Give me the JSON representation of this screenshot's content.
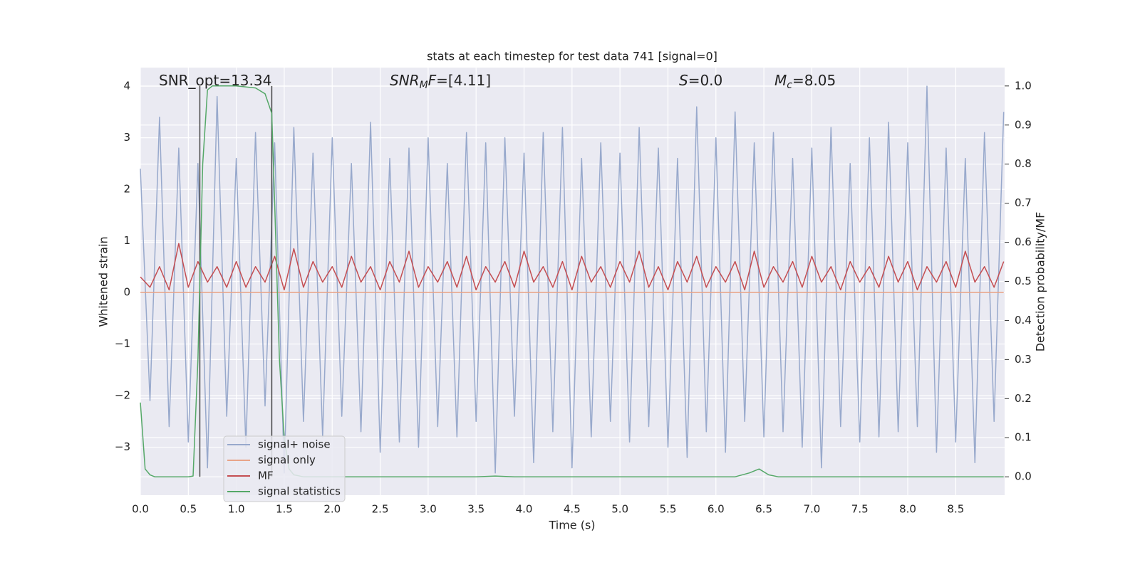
{
  "chart_data": {
    "type": "line",
    "title": "stats at each timestep for test data 741 [signal=0]",
    "xlabel": "Time (s)",
    "ylabel": "Whitened strain",
    "y2label": "Detection probability/MF",
    "annotations": [
      {
        "parts": [
          {
            "text": "SNR_opt=13.34"
          }
        ]
      },
      {
        "parts": [
          {
            "text": "SNR",
            "italic": true
          },
          {
            "text": "M",
            "italic": true,
            "sub": true
          },
          {
            "text": "F",
            "italic": true
          },
          {
            "text": "=[4.11]"
          }
        ]
      },
      {
        "parts": [
          {
            "text": "S",
            "italic": true
          },
          {
            "text": "=0.0"
          }
        ]
      },
      {
        "parts": [
          {
            "text": "M",
            "italic": true
          },
          {
            "text": "c",
            "italic": true,
            "sub": true
          },
          {
            "text": "=8.05"
          }
        ]
      }
    ],
    "xlim": [
      0,
      9.01
    ],
    "ylim": [
      -3.93,
      4.36
    ],
    "y2lim": [
      -0.047,
      1.047
    ],
    "xticks": [
      {
        "value": 0,
        "label": "0.0"
      },
      {
        "value": 0.5,
        "label": "0.5"
      },
      {
        "value": 1,
        "label": "1.0"
      },
      {
        "value": 1.5,
        "label": "1.5"
      },
      {
        "value": 2,
        "label": "2.0"
      },
      {
        "value": 2.5,
        "label": "2.5"
      },
      {
        "value": 3,
        "label": "3.0"
      },
      {
        "value": 3.5,
        "label": "3.5"
      },
      {
        "value": 4,
        "label": "4.0"
      },
      {
        "value": 4.5,
        "label": "4.5"
      },
      {
        "value": 5,
        "label": "5.0"
      },
      {
        "value": 5.5,
        "label": "5.5"
      },
      {
        "value": 6,
        "label": "6.0"
      },
      {
        "value": 6.5,
        "label": "6.5"
      },
      {
        "value": 7,
        "label": "7.0"
      },
      {
        "value": 7.5,
        "label": "7.5"
      },
      {
        "value": 8,
        "label": "8.0"
      },
      {
        "value": 8.5,
        "label": "8.5"
      }
    ],
    "yticks": [
      {
        "value": -3,
        "label": "−3"
      },
      {
        "value": -2,
        "label": "−2"
      },
      {
        "value": -1,
        "label": "−1"
      },
      0,
      1,
      2,
      3,
      4
    ],
    "y2ticks": [
      {
        "value": 0,
        "label": "0.0"
      },
      {
        "value": 0.1,
        "label": "0.1"
      },
      {
        "value": 0.2,
        "label": "0.2"
      },
      {
        "value": 0.3,
        "label": "0.3"
      },
      {
        "value": 0.4,
        "label": "0.4"
      },
      {
        "value": 0.5,
        "label": "0.5"
      },
      {
        "value": 0.6,
        "label": "0.6"
      },
      {
        "value": 0.7,
        "label": "0.7"
      },
      {
        "value": 0.8,
        "label": "0.8"
      },
      {
        "value": 0.9,
        "label": "0.9"
      },
      {
        "value": 1,
        "label": "1.0"
      }
    ],
    "grid": true,
    "legend": "lower left",
    "vlines": {
      "x": [
        0.62,
        1.37
      ],
      "y2": [
        0,
        1
      ],
      "color": "#444444"
    },
    "series": [
      {
        "name": "signal+ noise",
        "color": "#98a9cc",
        "x": [
          0,
          0.1,
          0.2,
          0.3,
          0.4,
          0.5,
          0.6,
          0.7,
          0.8,
          0.9,
          1,
          1.1,
          1.2,
          1.3,
          1.4,
          1.5,
          1.6,
          1.7,
          1.8,
          1.9,
          2,
          2.1,
          2.2,
          2.3,
          2.4,
          2.5,
          2.6,
          2.7,
          2.8,
          2.9,
          3,
          3.1,
          3.2,
          3.3,
          3.4,
          3.5,
          3.6,
          3.7,
          3.8,
          3.9,
          4,
          4.1,
          4.2,
          4.3,
          4.4,
          4.5,
          4.6,
          4.7,
          4.8,
          4.9,
          5,
          5.1,
          5.2,
          5.3,
          5.4,
          5.5,
          5.6,
          5.7,
          5.8,
          5.9,
          6,
          6.1,
          6.2,
          6.3,
          6.4,
          6.5,
          6.6,
          6.7,
          6.8,
          6.9,
          7,
          7.1,
          7.2,
          7.3,
          7.4,
          7.5,
          7.6,
          7.7,
          7.8,
          7.9,
          8,
          8.1,
          8.2,
          8.3,
          8.4,
          8.5,
          8.6,
          8.7,
          8.8,
          8.9,
          9
        ],
        "values": [
          2.4,
          -2.1,
          3.4,
          -2.6,
          2.8,
          -2.9,
          2.5,
          -3.4,
          3.8,
          -2.4,
          2.6,
          -3.0,
          3.1,
          -2.2,
          2.9,
          -3.5,
          3.2,
          -2.5,
          2.7,
          -2.8,
          3.0,
          -2.4,
          2.5,
          -2.7,
          3.3,
          -3.1,
          2.6,
          -2.9,
          2.8,
          -3.0,
          3.0,
          -2.6,
          2.5,
          -2.8,
          3.1,
          -2.5,
          2.9,
          -3.5,
          3.0,
          -2.4,
          2.7,
          -3.3,
          3.1,
          -2.7,
          3.2,
          -3.4,
          2.6,
          -2.8,
          2.9,
          -2.5,
          2.7,
          -2.9,
          3.2,
          -2.6,
          2.8,
          -3.0,
          2.6,
          -3.2,
          3.6,
          -2.7,
          3.0,
          -3.1,
          3.5,
          -2.5,
          2.9,
          -2.8,
          3.1,
          -2.7,
          2.6,
          -3.0,
          2.8,
          -3.4,
          3.2,
          -2.6,
          2.5,
          -2.9,
          3.0,
          -2.8,
          3.3,
          -2.7,
          2.9,
          -2.6,
          4.0,
          -3.1,
          2.8,
          -2.9,
          2.6,
          -3.3,
          3.1,
          -2.5,
          3.5
        ]
      },
      {
        "name": "signal only",
        "color": "#e8a488",
        "x": [
          0,
          9
        ],
        "values": [
          0,
          0
        ]
      },
      {
        "name": "MF",
        "color": "#c44e52",
        "x": [
          0,
          0.1,
          0.2,
          0.3,
          0.4,
          0.5,
          0.6,
          0.7,
          0.8,
          0.9,
          1,
          1.1,
          1.2,
          1.3,
          1.4,
          1.5,
          1.6,
          1.7,
          1.8,
          1.9,
          2,
          2.1,
          2.2,
          2.3,
          2.4,
          2.5,
          2.6,
          2.7,
          2.8,
          2.9,
          3,
          3.1,
          3.2,
          3.3,
          3.4,
          3.5,
          3.6,
          3.7,
          3.8,
          3.9,
          4,
          4.1,
          4.2,
          4.3,
          4.4,
          4.5,
          4.6,
          4.7,
          4.8,
          4.9,
          5,
          5.1,
          5.2,
          5.3,
          5.4,
          5.5,
          5.6,
          5.7,
          5.8,
          5.9,
          6,
          6.1,
          6.2,
          6.3,
          6.4,
          6.5,
          6.6,
          6.7,
          6.8,
          6.9,
          7,
          7.1,
          7.2,
          7.3,
          7.4,
          7.5,
          7.6,
          7.7,
          7.8,
          7.9,
          8,
          8.1,
          8.2,
          8.3,
          8.4,
          8.5,
          8.6,
          8.7,
          8.8,
          8.9,
          9
        ],
        "values": [
          0.3,
          0.1,
          0.5,
          0.05,
          0.95,
          0.1,
          0.6,
          0.2,
          0.5,
          0.1,
          0.6,
          0.1,
          0.5,
          0.2,
          0.7,
          0.05,
          0.85,
          0.1,
          0.6,
          0.2,
          0.5,
          0.1,
          0.7,
          0.2,
          0.5,
          0.05,
          0.6,
          0.2,
          0.8,
          0.1,
          0.5,
          0.2,
          0.6,
          0.1,
          0.7,
          0.05,
          0.5,
          0.2,
          0.6,
          0.1,
          0.8,
          0.2,
          0.5,
          0.1,
          0.6,
          0.05,
          0.7,
          0.2,
          0.5,
          0.1,
          0.6,
          0.2,
          0.8,
          0.1,
          0.5,
          0.05,
          0.6,
          0.2,
          0.7,
          0.1,
          0.5,
          0.2,
          0.6,
          0.05,
          0.8,
          0.1,
          0.5,
          0.2,
          0.6,
          0.1,
          0.7,
          0.2,
          0.5,
          0.05,
          0.6,
          0.2,
          0.5,
          0.1,
          0.7,
          0.2,
          0.6,
          0.05,
          0.5,
          0.2,
          0.6,
          0.1,
          0.8,
          0.2,
          0.5,
          0.1,
          0.6
        ]
      },
      {
        "name": "signal statistics",
        "color": "#55a868",
        "axis": "y2",
        "x": [
          0,
          0.05,
          0.1,
          0.15,
          0.2,
          0.5,
          0.55,
          0.6,
          0.65,
          0.7,
          0.75,
          1.0,
          1.2,
          1.3,
          1.37,
          1.4,
          1.45,
          1.5,
          1.55,
          1.6,
          1.7,
          3.5,
          3.7,
          3.9,
          6.2,
          6.35,
          6.45,
          6.55,
          6.65,
          9.0
        ],
        "values": [
          0.19,
          0.02,
          0.005,
          0,
          0,
          0,
          0.002,
          0.3,
          0.8,
          0.99,
          1.0,
          1.0,
          0.995,
          0.98,
          0.93,
          0.7,
          0.3,
          0.1,
          0.02,
          0.005,
          0,
          0,
          0.002,
          0,
          0,
          0.01,
          0.02,
          0.005,
          0,
          0
        ]
      }
    ]
  }
}
